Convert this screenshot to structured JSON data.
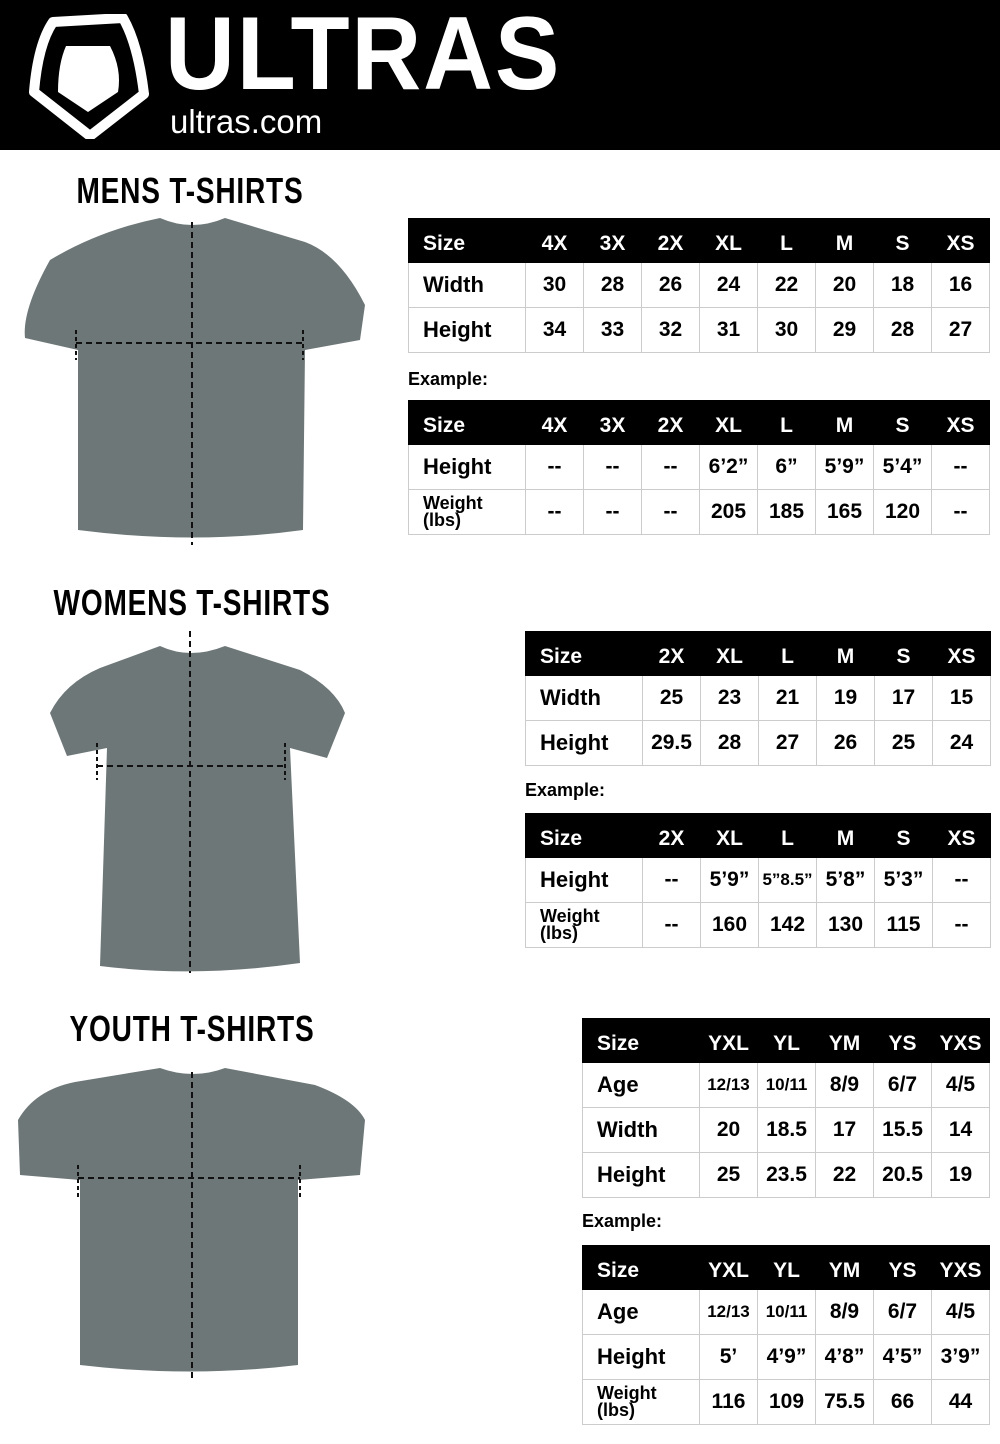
{
  "header": {
    "brand": "ULTRAS",
    "site": "ultras.com",
    "logo_icon": "shield-icon"
  },
  "example_label": "Example:",
  "sections": [
    {
      "id": "mens",
      "title": "MENS  T-SHIRTS",
      "size_chart": {
        "header": [
          "Size",
          "4X",
          "3X",
          "2X",
          "XL",
          "L",
          "M",
          "S",
          "XS"
        ],
        "rows": [
          [
            "Width",
            "30",
            "28",
            "26",
            "24",
            "22",
            "20",
            "18",
            "16"
          ],
          [
            "Height",
            "34",
            "33",
            "32",
            "31",
            "30",
            "29",
            "28",
            "27"
          ]
        ]
      },
      "example": {
        "header": [
          "Size",
          "4X",
          "3X",
          "2X",
          "XL",
          "L",
          "M",
          "S",
          "XS"
        ],
        "rows": [
          [
            "Height",
            "--",
            "--",
            "--",
            "6’2”",
            "6”",
            "5’9”",
            "5’4”",
            "--"
          ],
          [
            "Weight (lbs)",
            "--",
            "--",
            "--",
            "205",
            "185",
            "165",
            "120",
            "--"
          ]
        ]
      }
    },
    {
      "id": "womens",
      "title": "WOMENS  T-SHIRTS",
      "size_chart": {
        "header": [
          "Size",
          "2X",
          "XL",
          "L",
          "M",
          "S",
          "XS"
        ],
        "rows": [
          [
            "Width",
            "25",
            "23",
            "21",
            "19",
            "17",
            "15"
          ],
          [
            "Height",
            "29.5",
            "28",
            "27",
            "26",
            "25",
            "24"
          ]
        ]
      },
      "example": {
        "header": [
          "Size",
          "2X",
          "XL",
          "L",
          "M",
          "S",
          "XS"
        ],
        "rows": [
          [
            "Height",
            "--",
            "5’9”",
            "5”8.5”",
            "5’8”",
            "5’3”",
            "--"
          ],
          [
            "Weight (lbs)",
            "--",
            "160",
            "142",
            "130",
            "115",
            "--"
          ]
        ]
      }
    },
    {
      "id": "youth",
      "title": "YOUTH  T-SHIRTS",
      "size_chart": {
        "header": [
          "Size",
          "YXL",
          "YL",
          "YM",
          "YS",
          "YXS"
        ],
        "rows": [
          [
            "Age",
            "12/13",
            "10/11",
            "8/9",
            "6/7",
            "4/5"
          ],
          [
            "Width",
            "20",
            "18.5",
            "17",
            "15.5",
            "14"
          ],
          [
            "Height",
            "25",
            "23.5",
            "22",
            "20.5",
            "19"
          ]
        ]
      },
      "example": {
        "header": [
          "Size",
          "YXL",
          "YL",
          "YM",
          "YS",
          "YXS"
        ],
        "rows": [
          [
            "Age",
            "12/13",
            "10/11",
            "8/9",
            "6/7",
            "4/5"
          ],
          [
            "Height",
            "5’",
            "4’9”",
            "4’8”",
            "4’5”",
            "3’9”"
          ],
          [
            "Weight (lbs)",
            "116",
            "109",
            "75.5",
            "66",
            "44"
          ]
        ]
      }
    }
  ],
  "colors": {
    "header_bg": "#000000",
    "shirt": "#6e7778",
    "table_header": "#000000"
  }
}
